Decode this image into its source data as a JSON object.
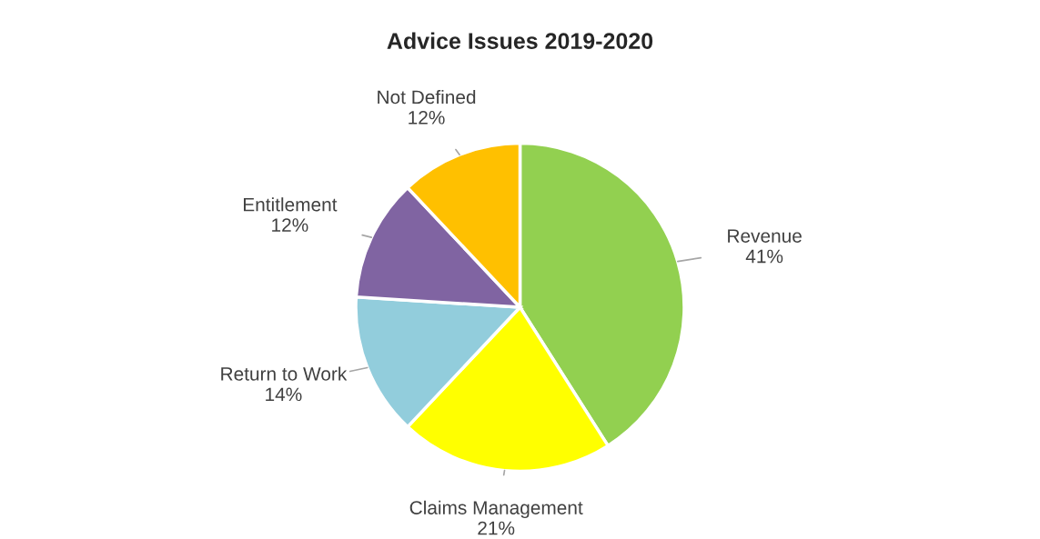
{
  "chart_data": {
    "type": "pie",
    "title": "Advice Issues 2019-2020",
    "categories": [
      "Revenue",
      "Claims Management",
      "Return to Work",
      "Entitlement",
      "Not Defined"
    ],
    "values": [
      41,
      21,
      14,
      12,
      12
    ],
    "value_labels": [
      "41%",
      "21%",
      "14%",
      "12%",
      "12%"
    ],
    "colors": [
      "#92d050",
      "#ffff00",
      "#92cddc",
      "#8064a2",
      "#ffc000"
    ],
    "legend": false
  }
}
